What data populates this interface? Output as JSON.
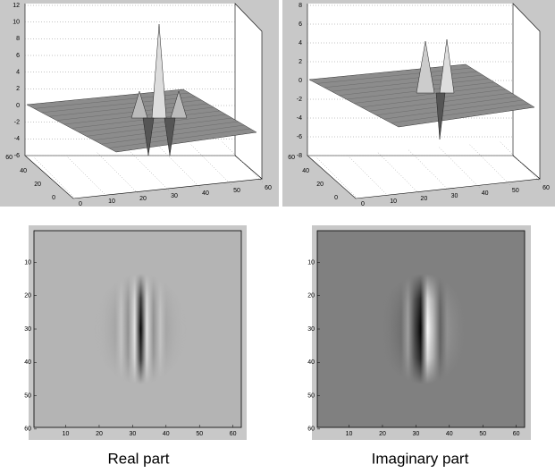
{
  "surfaces": [
    {
      "z_ticks": [
        12,
        10,
        8,
        6,
        4,
        2,
        0,
        -2,
        -4,
        -6
      ],
      "y_ticks": [
        60,
        40,
        20,
        0
      ],
      "x_ticks": [
        0,
        10,
        20,
        30,
        40,
        50,
        60
      ]
    },
    {
      "z_ticks": [
        8,
        6,
        4,
        2,
        0,
        -2,
        -4,
        -6,
        -8
      ],
      "y_ticks": [
        60,
        40,
        20,
        0
      ],
      "x_ticks": [
        0,
        10,
        20,
        30,
        40,
        50,
        60
      ]
    }
  ],
  "images": [
    {
      "y_ticks": [
        10,
        20,
        30,
        40,
        50,
        60
      ],
      "x_ticks": [
        10,
        20,
        30,
        40,
        50,
        60
      ],
      "caption": "Real part"
    },
    {
      "y_ticks": [
        10,
        20,
        30,
        40,
        50,
        60
      ],
      "x_ticks": [
        10,
        20,
        30,
        40,
        50,
        60
      ],
      "caption": "Imaginary part"
    }
  ]
}
